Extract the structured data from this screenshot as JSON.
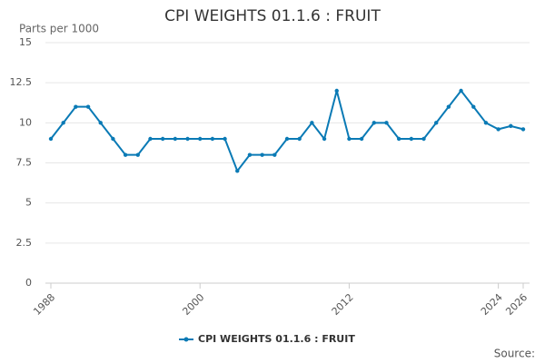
{
  "chart_data": {
    "type": "line",
    "title": "CPI WEIGHTS 01.1.6 : FRUIT",
    "y_label": "Parts per 1000",
    "source": "Source:",
    "x": [
      1988,
      1989,
      1990,
      1991,
      1992,
      1993,
      1994,
      1995,
      1996,
      1997,
      1998,
      1999,
      2000,
      2001,
      2002,
      2003,
      2004,
      2005,
      2006,
      2007,
      2008,
      2009,
      2010,
      2011,
      2012,
      2013,
      2014,
      2015,
      2016,
      2017,
      2018,
      2019,
      2020,
      2021,
      2022,
      2023,
      2024,
      2025,
      2026
    ],
    "series": [
      {
        "name": "CPI WEIGHTS 01.1.6 : FRUIT",
        "color": "#0a7ab5",
        "values": [
          9,
          10,
          11,
          11,
          10,
          9,
          8,
          8,
          9,
          9,
          9,
          9,
          9,
          9,
          9,
          7,
          8,
          8,
          8,
          9,
          9,
          10,
          9,
          12,
          9,
          9,
          10,
          10,
          9,
          9,
          9,
          10,
          11,
          12,
          11,
          10,
          9.6,
          9.8,
          9.6
        ]
      }
    ],
    "xlim": [
      1988,
      2026
    ],
    "xticks": [
      1988,
      2000,
      2012,
      2024,
      2026
    ],
    "ylim": [
      0,
      15
    ],
    "yticks": [
      0,
      2.5,
      5,
      7.5,
      10,
      12.5,
      15
    ],
    "grid": true
  }
}
